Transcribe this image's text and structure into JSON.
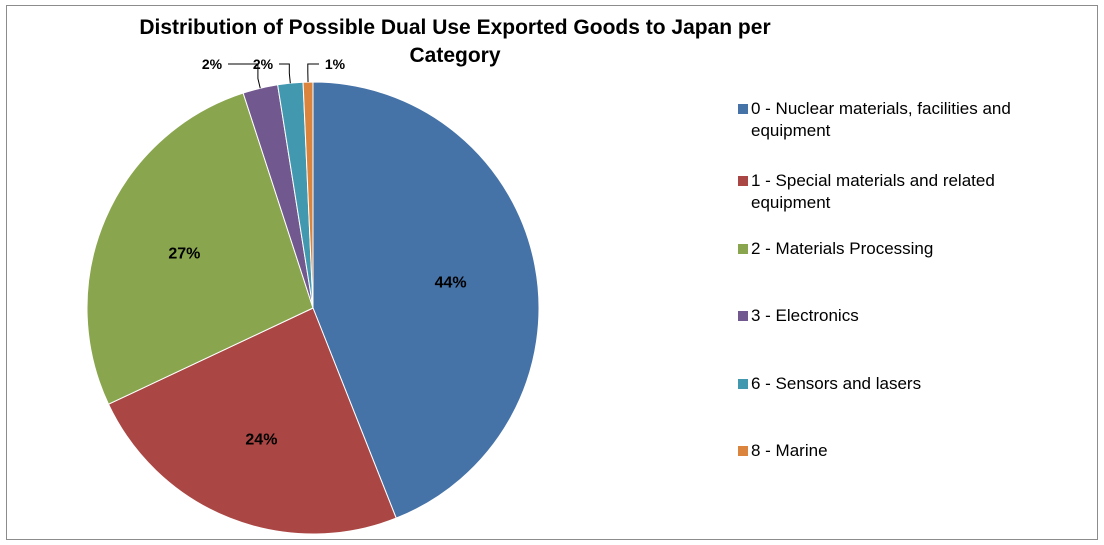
{
  "chart_data": {
    "type": "pie",
    "title": [
      "Distribution of Possible Dual Use Exported Goods to Japan per",
      "Category"
    ],
    "slices": [
      {
        "label": "0 - Nuclear materials, facilities and equipment",
        "legend_lines": [
          "0 - Nuclear materials, facilities and",
          "equipment"
        ],
        "value": 44,
        "display": "44%",
        "color": "#4572A7"
      },
      {
        "label": "1 - Special materials and related equipment",
        "legend_lines": [
          "1 - Special materials and related",
          "equipment"
        ],
        "value": 24,
        "display": "24%",
        "color": "#AA4643"
      },
      {
        "label": "2 - Materials Processing",
        "legend_lines": [
          "2 - Materials Processing"
        ],
        "value": 27,
        "display": "27%",
        "color": "#89A54E"
      },
      {
        "label": "3 - Electronics",
        "legend_lines": [
          "3 - Electronics"
        ],
        "value": 2.5,
        "display": "2%",
        "color": "#71588F"
      },
      {
        "label": "6 - Sensors and lasers",
        "legend_lines": [
          "6 - Sensors and lasers"
        ],
        "value": 1.8,
        "display": "2%",
        "color": "#4198AF"
      },
      {
        "label": "8 - Marine",
        "legend_lines": [
          "8 - Marine"
        ],
        "value": 0.7,
        "display": "1%",
        "color": "#DB843D"
      }
    ],
    "legend_position": "right"
  }
}
